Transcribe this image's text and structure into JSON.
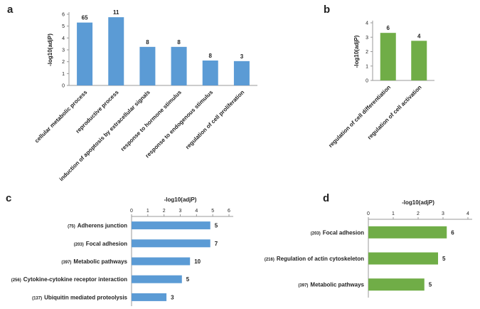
{
  "chart_data": [
    {
      "panel": "a",
      "type": "bar",
      "orientation": "vertical",
      "color": "#5b9bd5",
      "ylabel": "-log10(adjP)",
      "ylim": [
        0,
        6
      ],
      "yticks": [
        "0",
        "1",
        "2",
        "3",
        "4",
        "5",
        "6"
      ],
      "categories": [
        "cellular metabolic process",
        "reproductive process",
        "induction of apoptosis by extracellular signals",
        "response to hormone stimulus",
        "response to endogenous stimulus",
        "regulation of  cell proliferation"
      ],
      "values": [
        5.3,
        5.75,
        3.25,
        3.25,
        2.1,
        2.05
      ],
      "labels": [
        "65",
        "11",
        "8",
        "8",
        "8",
        "3"
      ]
    },
    {
      "panel": "b",
      "type": "bar",
      "orientation": "vertical",
      "color": "#70ad47",
      "ylabel": "-log10(adjP)",
      "ylim": [
        0,
        4
      ],
      "yticks": [
        "0",
        "1",
        "2",
        "3",
        "4"
      ],
      "categories": [
        "regulation of cell differentiation",
        "regulation of cell activation"
      ],
      "values": [
        3.3,
        2.75
      ],
      "labels": [
        "6",
        "4"
      ]
    },
    {
      "panel": "c",
      "type": "bar",
      "orientation": "horizontal",
      "color": "#5b9bd5",
      "xlabel": "-log10(adjP)",
      "xlim": [
        0,
        6
      ],
      "xticks": [
        "0",
        "1",
        "2",
        "3",
        "4",
        "5",
        "6"
      ],
      "counts": [
        "(75)",
        "(203)",
        "(397)",
        "(256)",
        "(137)"
      ],
      "categories": [
        "Adherens junction",
        "Focal adhesion",
        "Metabolic pathways",
        "Cytokine-cytokine receptor interaction",
        "Ubiquitin mediated proteolysis"
      ],
      "values": [
        4.85,
        4.85,
        3.6,
        3.1,
        2.15
      ],
      "labels": [
        "5",
        "7",
        "10",
        "5",
        "3"
      ]
    },
    {
      "panel": "d",
      "type": "bar",
      "orientation": "horizontal",
      "color": "#70ad47",
      "xlabel": "-log10(adjP)",
      "xlim": [
        0,
        4
      ],
      "xticks": [
        "0",
        "1",
        "2",
        "3",
        "4"
      ],
      "counts": [
        "(203)",
        "(216)",
        "(397)"
      ],
      "categories": [
        "Focal adhesion",
        "Regulation of actin cytoskeleton",
        "Metabolic pathways"
      ],
      "values": [
        3.15,
        2.8,
        2.25
      ],
      "labels": [
        "6",
        "5",
        "5"
      ]
    }
  ]
}
